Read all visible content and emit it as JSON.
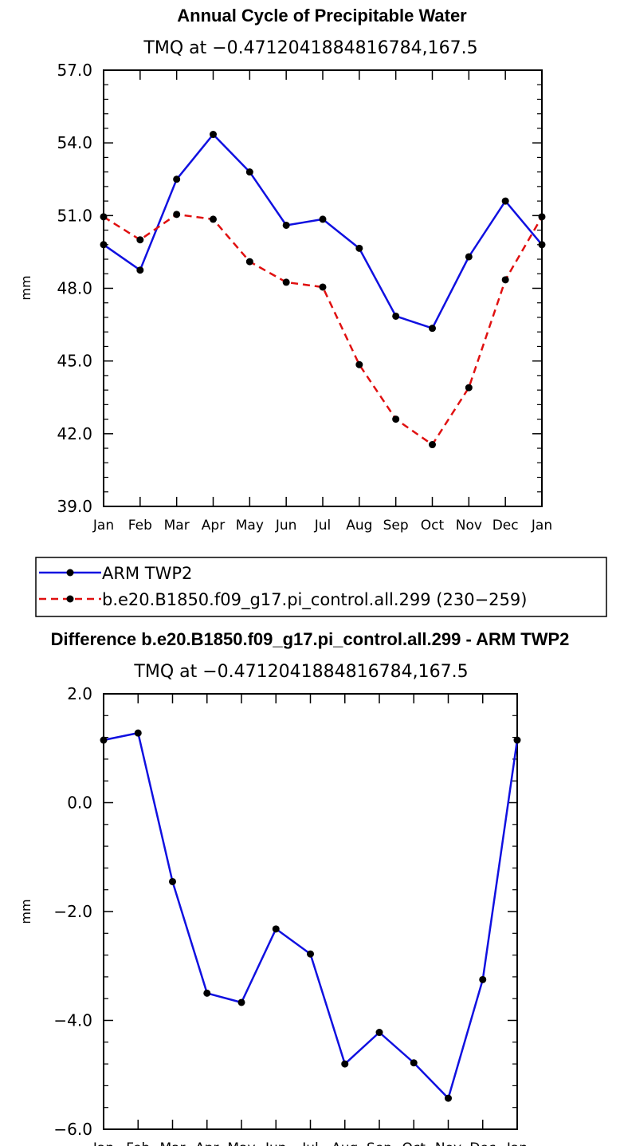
{
  "chart_data": [
    {
      "type": "line",
      "title": "Annual Cycle of Precipitable Water",
      "subtitle": "TMQ at −0.4712041884816784,167.5",
      "xlabel": "",
      "ylabel": "mm",
      "categories": [
        "Jan",
        "Feb",
        "Mar",
        "Apr",
        "May",
        "Jun",
        "Jul",
        "Aug",
        "Sep",
        "Oct",
        "Nov",
        "Dec",
        "Jan"
      ],
      "ylim": [
        39.0,
        57.0
      ],
      "yticks": [
        39.0,
        42.0,
        45.0,
        48.0,
        51.0,
        54.0,
        57.0
      ],
      "ytick_labels": [
        "39.0",
        "42.0",
        "45.0",
        "48.0",
        "51.0",
        "54.0",
        "57.0"
      ],
      "grid": false,
      "legend_position": "below",
      "series": [
        {
          "name": "ARM TWP2",
          "color": "#1010e0",
          "dash": "solid",
          "values": [
            49.8,
            48.75,
            52.5,
            54.35,
            52.8,
            50.6,
            50.85,
            49.65,
            46.85,
            46.35,
            49.3,
            51.6,
            49.8
          ]
        },
        {
          "name": "b.e20.B1850.f09_g17.pi_control.all.299 (230−259)",
          "color": "#e01010",
          "dash": "dashed",
          "values": [
            50.95,
            50.0,
            51.05,
            50.85,
            49.1,
            48.25,
            48.05,
            44.85,
            42.6,
            41.55,
            43.9,
            48.35,
            50.95
          ]
        }
      ]
    },
    {
      "type": "line",
      "title": "Difference b.e20.B1850.f09_g17.pi_control.all.299 - ARM TWP2",
      "subtitle": "TMQ at −0.4712041884816784,167.5",
      "xlabel": "",
      "ylabel": "mm",
      "categories": [
        "Jan",
        "Feb",
        "Mar",
        "Apr",
        "May",
        "Jun",
        "Jul",
        "Aug",
        "Sep",
        "Oct",
        "Nov",
        "Dec",
        "Jan"
      ],
      "ylim": [
        -6.0,
        2.0
      ],
      "yticks": [
        -6.0,
        -4.0,
        -2.0,
        0.0,
        2.0
      ],
      "ytick_labels": [
        "−6.0",
        "−4.0",
        "−2.0",
        "0.0",
        "2.0"
      ],
      "grid": false,
      "series": [
        {
          "color": "#1010e0",
          "dash": "solid",
          "values": [
            1.15,
            1.28,
            -1.45,
            -3.5,
            -3.67,
            -2.32,
            -2.78,
            -4.8,
            -4.22,
            -4.78,
            -5.43,
            -3.25,
            1.15
          ]
        }
      ]
    }
  ]
}
